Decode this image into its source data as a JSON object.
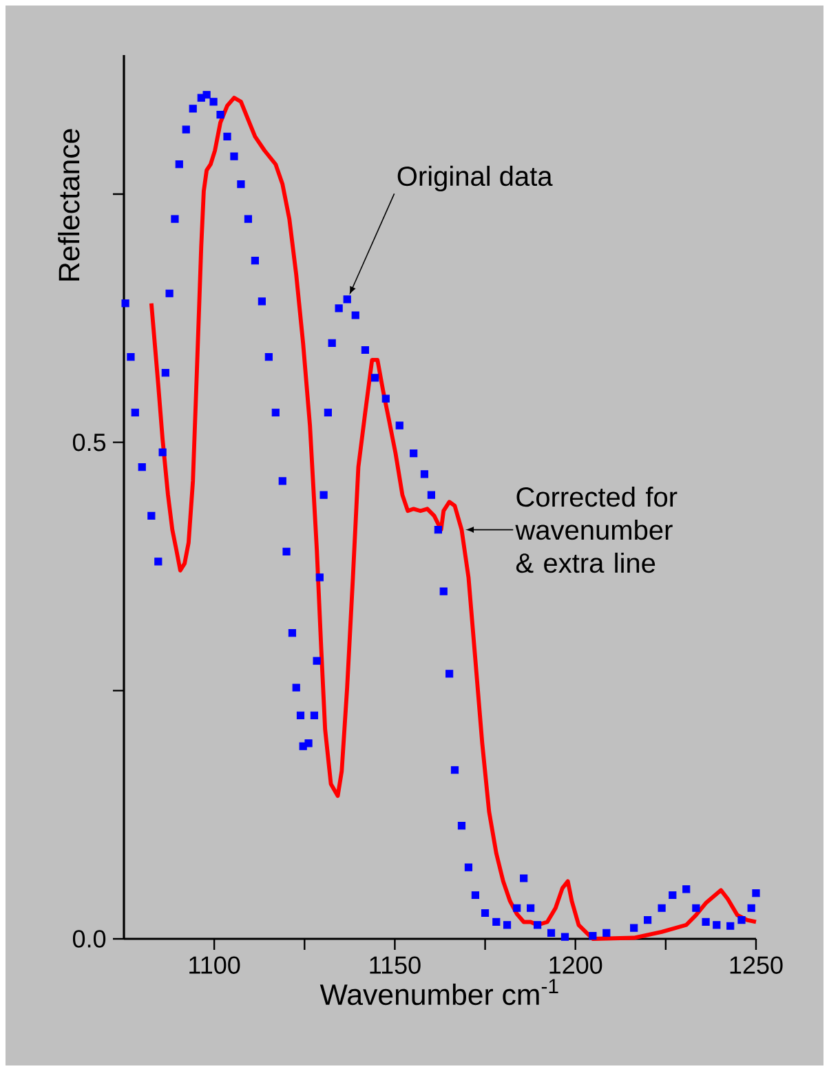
{
  "chart_data": {
    "type": "line",
    "xlabel": "Wavenumber cm$^{-1}$",
    "ylabel": "Reflectance",
    "xlim": [
      1075,
      1250
    ],
    "ylim": [
      0,
      0.89
    ],
    "xticks": [
      1100,
      {
        "value": 1125,
        "label": null
      },
      1150,
      {
        "value": 1175,
        "label": null
      },
      1200,
      {
        "value": 1225,
        "label": null
      },
      1250
    ],
    "yticks": [
      {
        "value": 0,
        "label": "0.0"
      },
      {
        "value": 0.25,
        "label": null
      },
      0.5,
      {
        "value": 0.75,
        "label": null
      }
    ],
    "series": [
      {
        "type": "scatter",
        "marker": "square",
        "color": "#0000ff",
        "x": [
          1075.4,
          1076.9,
          1078.1,
          1080.0,
          1082.6,
          1084.5,
          1085.7,
          1086.5,
          1087.6,
          1089.1,
          1090.3,
          1092.2,
          1094.1,
          1096.4,
          1097.9,
          1099.8,
          1101.7,
          1103.6,
          1105.5,
          1107.4,
          1109.4,
          1111.3,
          1113.2,
          1115.1,
          1117.0,
          1118.9,
          1120.0,
          1121.6,
          1122.7,
          1123.9,
          1124.6,
          1126.1,
          1127.7,
          1128.4,
          1129.2,
          1130.3,
          1131.5,
          1132.6,
          1134.5,
          1136.8,
          1139.1,
          1141.8,
          1144.5,
          1147.5,
          1151.3,
          1155.2,
          1158.2,
          1160.1,
          1162.0,
          1163.5,
          1165.1,
          1166.6,
          1168.5,
          1170.4,
          1172.3,
          1175.0,
          1178.1,
          1181.1,
          1183.8,
          1185.7,
          1187.6,
          1189.5,
          1193.3,
          1197.1,
          1204.8,
          1208.6,
          1216.2,
          1220.0,
          1223.9,
          1226.9,
          1230.7,
          1233.4,
          1236.1,
          1239.1,
          1242.9,
          1246.0,
          1248.7,
          1250.0
        ],
        "values": [
          0.64,
          0.586,
          0.53,
          0.475,
          0.426,
          0.38,
          0.49,
          0.57,
          0.65,
          0.725,
          0.78,
          0.815,
          0.836,
          0.847,
          0.85,
          0.843,
          0.83,
          0.808,
          0.788,
          0.76,
          0.725,
          0.683,
          0.642,
          0.586,
          0.53,
          0.461,
          0.39,
          0.308,
          0.253,
          0.225,
          0.194,
          0.197,
          0.225,
          0.28,
          0.364,
          0.447,
          0.53,
          0.6,
          0.635,
          0.644,
          0.628,
          0.593,
          0.565,
          0.544,
          0.517,
          0.489,
          0.468,
          0.447,
          0.412,
          0.35,
          0.267,
          0.17,
          0.114,
          0.072,
          0.044,
          0.026,
          0.017,
          0.014,
          0.031,
          0.061,
          0.031,
          0.014,
          0.006,
          0.002,
          0.003,
          0.006,
          0.011,
          0.019,
          0.031,
          0.044,
          0.05,
          0.031,
          0.017,
          0.014,
          0.013,
          0.019,
          0.031,
          0.046
        ]
      },
      {
        "marker": "none",
        "color": "#ff0000",
        "x": [
          1082.6,
          1084.5,
          1085.7,
          1087.2,
          1088.4,
          1089.5,
          1090.6,
          1091.8,
          1092.9,
          1094.1,
          1095.2,
          1096.4,
          1097.1,
          1097.9,
          1099.0,
          1100.2,
          1101.7,
          1103.6,
          1105.5,
          1107.4,
          1109.4,
          1111.3,
          1113.9,
          1117.0,
          1118.9,
          1120.8,
          1122.7,
          1124.6,
          1126.5,
          1128.4,
          1129.6,
          1130.7,
          1132.3,
          1134.2,
          1135.3,
          1136.8,
          1138.4,
          1139.9,
          1141.8,
          1143.7,
          1145.2,
          1146.8,
          1148.3,
          1150.2,
          1152.1,
          1153.6,
          1155.2,
          1157.1,
          1159.0,
          1160.9,
          1162.8,
          1163.5,
          1165.1,
          1166.6,
          1168.5,
          1170.4,
          1172.3,
          1174.2,
          1176.1,
          1178.1,
          1180.0,
          1181.9,
          1183.8,
          1185.7,
          1187.6,
          1189.5,
          1192.2,
          1194.5,
          1196.4,
          1197.9,
          1199.0,
          1200.9,
          1204.8,
          1216.2,
          1223.9,
          1230.7,
          1233.4,
          1236.1,
          1240.3,
          1242.2,
          1244.8,
          1247.5,
          1250.0
        ],
        "values": [
          0.64,
          0.558,
          0.503,
          0.447,
          0.412,
          0.392,
          0.371,
          0.378,
          0.399,
          0.461,
          0.572,
          0.697,
          0.753,
          0.774,
          0.78,
          0.794,
          0.822,
          0.839,
          0.847,
          0.843,
          0.825,
          0.808,
          0.794,
          0.78,
          0.76,
          0.725,
          0.669,
          0.6,
          0.517,
          0.392,
          0.294,
          0.211,
          0.156,
          0.144,
          0.169,
          0.253,
          0.364,
          0.475,
          0.53,
          0.583,
          0.583,
          0.551,
          0.524,
          0.489,
          0.447,
          0.431,
          0.433,
          0.431,
          0.433,
          0.426,
          0.412,
          0.431,
          0.44,
          0.436,
          0.412,
          0.364,
          0.281,
          0.197,
          0.128,
          0.086,
          0.058,
          0.038,
          0.025,
          0.017,
          0.017,
          0.014,
          0.017,
          0.031,
          0.051,
          0.058,
          0.038,
          0.014,
          0.0,
          0.001,
          0.007,
          0.014,
          0.024,
          0.036,
          0.049,
          0.04,
          0.024,
          0.019,
          0.017
        ]
      }
    ],
    "annotations": [
      {
        "text": "Original data",
        "x": 1137,
        "y": 0.645
      },
      {
        "text": "Corrected for wavenumber & extra line",
        "x": 1168.5,
        "y": 0.412
      }
    ]
  }
}
